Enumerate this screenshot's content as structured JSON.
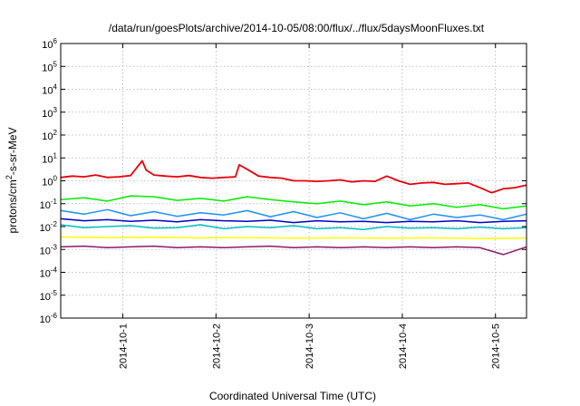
{
  "chart_data": {
    "type": "line",
    "title": "/data/run/goesPlots/archive/2014-10-05/08:00/flux/../flux/5daysMoonFluxes.txt",
    "xlabel": "Coordinated Universal Time (UTC)",
    "ylabel": "protons/cm^2-s-sr-MeV",
    "ylabel_base": "protons/cm",
    "ylabel_sup": "2",
    "ylabel_rest": "-s-sr-MeV",
    "yscale": "log",
    "ylim": [
      1e-06,
      1000000.0
    ],
    "xlim": [
      "2014-09-30 08:00",
      "2014-10-05 08:00"
    ],
    "grid": true,
    "legend": "none",
    "x_ticks": [
      "2014-10-1",
      "2014-10-2",
      "2014-10-3",
      "2014-10-4",
      "2014-10-5"
    ],
    "y_ticks": [
      {
        "value": 1e-06,
        "base": "10",
        "exp": "-6"
      },
      {
        "value": 1e-05,
        "base": "10",
        "exp": "-5"
      },
      {
        "value": 0.0001,
        "base": "10",
        "exp": "-4"
      },
      {
        "value": 0.001,
        "base": "10",
        "exp": "-3"
      },
      {
        "value": 0.01,
        "base": "10",
        "exp": "-2"
      },
      {
        "value": 0.1,
        "base": "10",
        "exp": "-1"
      },
      {
        "value": 1,
        "base": "10",
        "exp": "0"
      },
      {
        "value": 10,
        "base": "10",
        "exp": "1"
      },
      {
        "value": 100,
        "base": "10",
        "exp": "2"
      },
      {
        "value": 1000,
        "base": "10",
        "exp": "3"
      },
      {
        "value": 10000,
        "base": "10",
        "exp": "4"
      },
      {
        "value": 100000,
        "base": "10",
        "exp": "5"
      },
      {
        "value": 1000000,
        "base": "10",
        "exp": "6"
      }
    ],
    "series": [
      {
        "color": "#e8000b",
        "x": [
          "2014-09-30 08:00",
          "2014-09-30 11:00",
          "2014-09-30 14:00",
          "2014-09-30 17:00",
          "2014-09-30 20:00",
          "2014-09-30 23:00",
          "2014-10-01 02:00",
          "2014-10-01 05:00",
          "2014-10-01 06:00",
          "2014-10-01 08:00",
          "2014-10-01 11:00",
          "2014-10-01 14:00",
          "2014-10-01 17:00",
          "2014-10-01 20:00",
          "2014-10-01 23:00",
          "2014-10-02 02:00",
          "2014-10-02 05:00",
          "2014-10-02 06:00",
          "2014-10-02 08:00",
          "2014-10-02 11:00",
          "2014-10-02 14:00",
          "2014-10-02 17:00",
          "2014-10-02 20:00",
          "2014-10-02 23:00",
          "2014-10-03 02:00",
          "2014-10-03 05:00",
          "2014-10-03 08:00",
          "2014-10-03 11:00",
          "2014-10-03 14:00",
          "2014-10-03 17:00",
          "2014-10-03 20:00",
          "2014-10-03 23:00",
          "2014-10-04 02:00",
          "2014-10-04 05:00",
          "2014-10-04 08:00",
          "2014-10-04 11:00",
          "2014-10-04 14:00",
          "2014-10-04 17:00",
          "2014-10-04 20:00",
          "2014-10-04 23:00",
          "2014-10-05 02:00",
          "2014-10-05 05:00",
          "2014-10-05 08:00"
        ],
        "values": [
          1.4,
          1.6,
          1.5,
          1.8,
          1.4,
          1.5,
          1.7,
          7.5,
          3.0,
          1.8,
          1.6,
          1.5,
          1.7,
          1.4,
          1.3,
          1.4,
          1.5,
          5.0,
          3.2,
          1.6,
          1.4,
          1.3,
          1.0,
          1.0,
          0.95,
          1.0,
          1.1,
          0.9,
          1.0,
          0.95,
          1.6,
          1.0,
          0.7,
          0.8,
          0.85,
          0.7,
          0.75,
          0.8,
          0.5,
          0.3,
          0.45,
          0.5,
          0.65
        ]
      },
      {
        "color": "#00ee00",
        "x": [
          "2014-09-30 08:00",
          "2014-09-30 14:00",
          "2014-09-30 20:00",
          "2014-10-01 02:00",
          "2014-10-01 08:00",
          "2014-10-01 14:00",
          "2014-10-01 20:00",
          "2014-10-02 02:00",
          "2014-10-02 08:00",
          "2014-10-02 14:00",
          "2014-10-02 20:00",
          "2014-10-03 02:00",
          "2014-10-03 08:00",
          "2014-10-03 14:00",
          "2014-10-03 20:00",
          "2014-10-04 02:00",
          "2014-10-04 08:00",
          "2014-10-04 14:00",
          "2014-10-04 20:00",
          "2014-10-05 02:00",
          "2014-10-05 08:00"
        ],
        "values": [
          0.15,
          0.18,
          0.13,
          0.22,
          0.2,
          0.14,
          0.17,
          0.13,
          0.2,
          0.15,
          0.12,
          0.1,
          0.13,
          0.09,
          0.12,
          0.08,
          0.1,
          0.07,
          0.09,
          0.06,
          0.08
        ]
      },
      {
        "color": "#1e8fff",
        "x": [
          "2014-09-30 08:00",
          "2014-09-30 14:00",
          "2014-09-30 20:00",
          "2014-10-01 02:00",
          "2014-10-01 08:00",
          "2014-10-01 14:00",
          "2014-10-01 20:00",
          "2014-10-02 02:00",
          "2014-10-02 08:00",
          "2014-10-02 14:00",
          "2014-10-02 20:00",
          "2014-10-03 02:00",
          "2014-10-03 08:00",
          "2014-10-03 14:00",
          "2014-10-03 20:00",
          "2014-10-04 02:00",
          "2014-10-04 08:00",
          "2014-10-04 14:00",
          "2014-10-04 20:00",
          "2014-10-05 02:00",
          "2014-10-05 08:00"
        ],
        "values": [
          0.05,
          0.035,
          0.055,
          0.03,
          0.045,
          0.028,
          0.04,
          0.032,
          0.05,
          0.027,
          0.045,
          0.025,
          0.04,
          0.022,
          0.038,
          0.02,
          0.035,
          0.025,
          0.032,
          0.02,
          0.035
        ]
      },
      {
        "color": "#00c0c0",
        "x": [
          "2014-09-30 08:00",
          "2014-09-30 14:00",
          "2014-09-30 20:00",
          "2014-10-01 02:00",
          "2014-10-01 08:00",
          "2014-10-01 14:00",
          "2014-10-01 20:00",
          "2014-10-02 02:00",
          "2014-10-02 08:00",
          "2014-10-02 14:00",
          "2014-10-02 20:00",
          "2014-10-03 02:00",
          "2014-10-03 08:00",
          "2014-10-03 14:00",
          "2014-10-03 20:00",
          "2014-10-04 02:00",
          "2014-10-04 08:00",
          "2014-10-04 14:00",
          "2014-10-04 20:00",
          "2014-10-05 02:00",
          "2014-10-05 08:00"
        ],
        "values": [
          0.012,
          0.009,
          0.01,
          0.011,
          0.0085,
          0.009,
          0.012,
          0.008,
          0.01,
          0.009,
          0.011,
          0.008,
          0.009,
          0.0075,
          0.01,
          0.0085,
          0.009,
          0.008,
          0.0095,
          0.008,
          0.009
        ]
      },
      {
        "color": "#0000cc",
        "x": [
          "2014-09-30 08:00",
          "2014-09-30 14:00",
          "2014-09-30 20:00",
          "2014-10-01 02:00",
          "2014-10-01 08:00",
          "2014-10-01 14:00",
          "2014-10-01 20:00",
          "2014-10-02 02:00",
          "2014-10-02 08:00",
          "2014-10-02 14:00",
          "2014-10-02 20:00",
          "2014-10-03 02:00",
          "2014-10-03 08:00",
          "2014-10-03 14:00",
          "2014-10-03 20:00",
          "2014-10-04 02:00",
          "2014-10-04 08:00",
          "2014-10-04 14:00",
          "2014-10-04 20:00",
          "2014-10-05 02:00",
          "2014-10-05 08:00"
        ],
        "values": [
          0.022,
          0.018,
          0.02,
          0.017,
          0.019,
          0.016,
          0.02,
          0.018,
          0.017,
          0.019,
          0.015,
          0.018,
          0.016,
          0.017,
          0.015,
          0.017,
          0.016,
          0.018,
          0.015,
          0.017,
          0.018
        ]
      },
      {
        "color": "#ffff00",
        "x": [
          "2014-09-30 08:00",
          "2014-09-30 20:00",
          "2014-10-01 08:00",
          "2014-10-01 20:00",
          "2014-10-02 08:00",
          "2014-10-02 20:00",
          "2014-10-03 08:00",
          "2014-10-03 20:00",
          "2014-10-04 08:00",
          "2014-10-04 20:00",
          "2014-10-05 08:00"
        ],
        "values": [
          0.0035,
          0.0033,
          0.0034,
          0.0032,
          0.0033,
          0.0031,
          0.0032,
          0.0031,
          0.0032,
          0.003,
          0.0031
        ]
      },
      {
        "color": "#8b1a6b",
        "x": [
          "2014-09-30 08:00",
          "2014-09-30 14:00",
          "2014-09-30 20:00",
          "2014-10-01 02:00",
          "2014-10-01 08:00",
          "2014-10-01 14:00",
          "2014-10-01 20:00",
          "2014-10-02 02:00",
          "2014-10-02 08:00",
          "2014-10-02 14:00",
          "2014-10-02 20:00",
          "2014-10-03 02:00",
          "2014-10-03 08:00",
          "2014-10-03 14:00",
          "2014-10-03 20:00",
          "2014-10-04 02:00",
          "2014-10-04 08:00",
          "2014-10-04 14:00",
          "2014-10-04 20:00",
          "2014-10-05 02:00",
          "2014-10-05 08:00"
        ],
        "values": [
          0.0013,
          0.0014,
          0.0012,
          0.0013,
          0.0014,
          0.0012,
          0.0013,
          0.0012,
          0.0013,
          0.0014,
          0.0012,
          0.0013,
          0.0012,
          0.0013,
          0.0012,
          0.0013,
          0.0012,
          0.0013,
          0.0012,
          0.0006,
          0.0013
        ]
      }
    ]
  }
}
